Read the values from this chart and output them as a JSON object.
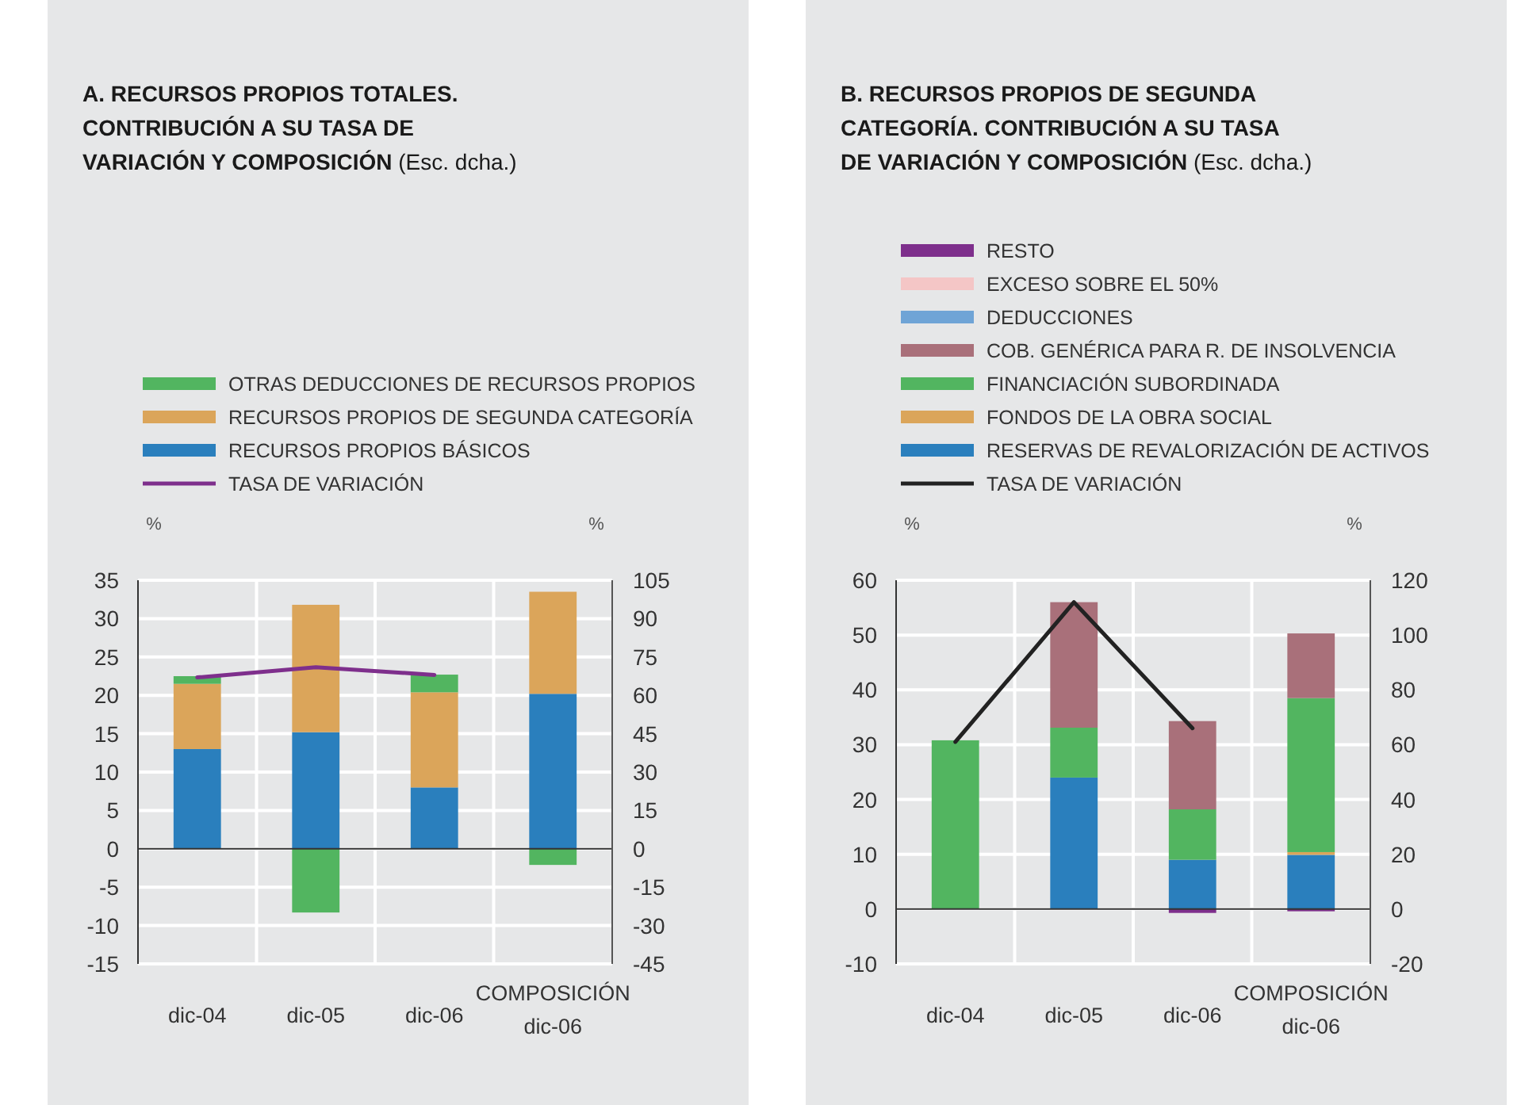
{
  "chart_data": [
    {
      "type": "bar",
      "stacked": true,
      "title": "A. RECURSOS PROPIOS TOTALES. CONTRIBUCIÓN A SU TASA DE VARIACIÓN Y COMPOSICIÓN",
      "subtitle": "(Esc. dcha.)",
      "ylabel": "%",
      "y2label": "%",
      "categories": [
        "dic-04",
        "dic-05",
        "dic-06",
        "COMPOSICIÓN dic-06"
      ],
      "ylim": [
        -15,
        35
      ],
      "yticks": [
        -15,
        -10,
        -5,
        0,
        5,
        10,
        15,
        20,
        25,
        30,
        35
      ],
      "y2lim": [
        -45,
        105
      ],
      "y2ticks": [
        -45,
        -30,
        -15,
        0,
        15,
        30,
        45,
        60,
        75,
        90,
        105
      ],
      "grid": true,
      "legend": "top",
      "series": [
        {
          "name": "RECURSOS PROPIOS BÁSICOS",
          "color": "#2a7fbd",
          "values": [
            13,
            15.2,
            8,
            20.2
          ]
        },
        {
          "name": "RECURSOS PROPIOS DE SEGUNDA CATEGORÍA",
          "color": "#dba55a",
          "values": [
            8.5,
            16.6,
            12.4,
            13.3
          ]
        },
        {
          "name": "OTRAS DEDUCCIONES DE RECURSOS PROPIOS",
          "color": "#52b560",
          "values": [
            1,
            -8.3,
            2.3,
            -2.1
          ]
        },
        {
          "name": "TASA DE VARIACIÓN",
          "type": "line",
          "axis": "y2",
          "color": "#7e2f8c",
          "values": [
            67,
            71,
            68,
            null
          ]
        }
      ]
    },
    {
      "type": "bar",
      "stacked": true,
      "title": "B. RECURSOS PROPIOS DE SEGUNDA CATEGORÍA. CONTRIBUCIÓN A SU TASA DE VARIACIÓN Y COMPOSICIÓN",
      "subtitle": "(Esc. dcha.)",
      "ylabel": "%",
      "y2label": "%",
      "categories": [
        "dic-04",
        "dic-05",
        "dic-06",
        "COMPOSICIÓN dic-06"
      ],
      "ylim": [
        -10,
        60
      ],
      "yticks": [
        -10,
        0,
        10,
        20,
        30,
        40,
        50,
        60
      ],
      "y2lim": [
        -20,
        120
      ],
      "y2ticks": [
        -20,
        0,
        20,
        40,
        60,
        80,
        100,
        120
      ],
      "grid": true,
      "legend": "top",
      "series": [
        {
          "name": "RESERVAS DE REVALORIZACIÓN DE ACTIVOS",
          "color": "#2a7fbd",
          "values": [
            null,
            24,
            9,
            9.9
          ]
        },
        {
          "name": "FONDOS DE LA OBRA SOCIAL",
          "color": "#dba55a",
          "values": [
            null,
            null,
            null,
            0.5
          ]
        },
        {
          "name": "FINANCIACIÓN SUBORDINADA",
          "color": "#52b560",
          "values": [
            30.8,
            9.1,
            9.2,
            28.1
          ]
        },
        {
          "name": "COB. GENÉRICA PARA R. DE INSOLVENCIA",
          "color": "#a9707a",
          "values": [
            null,
            22.9,
            16.1,
            11.8
          ]
        },
        {
          "name": "DEDUCCIONES",
          "color": "#6fa4d6",
          "values": [
            null,
            null,
            null,
            null
          ]
        },
        {
          "name": "EXCESO SOBRE EL 50%",
          "color": "#f4c6c6",
          "values": [
            null,
            null,
            null,
            null
          ]
        },
        {
          "name": "RESTO",
          "color": "#7e2f8c",
          "values": [
            null,
            null,
            -0.7,
            -0.4
          ]
        },
        {
          "name": "TASA DE VARIACIÓN",
          "type": "line",
          "axis": "y2",
          "color": "#222222",
          "values": [
            61,
            112,
            66,
            null
          ]
        }
      ]
    }
  ]
}
